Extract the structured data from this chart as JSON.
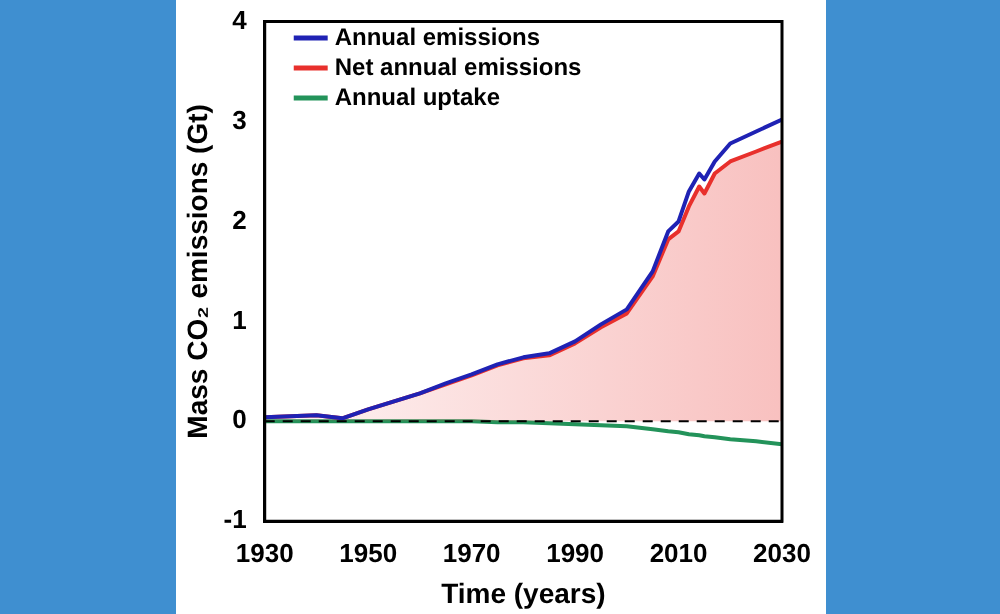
{
  "chart_data": {
    "type": "line",
    "xlabel": "Time (years)",
    "ylabel": "Mass CO₂ emissions (Gt)",
    "x": [
      1930,
      1935,
      1940,
      1945,
      1950,
      1955,
      1960,
      1965,
      1970,
      1975,
      1980,
      1985,
      1990,
      1995,
      2000,
      2005,
      2008,
      2010,
      2012,
      2014,
      2015,
      2017,
      2020,
      2025,
      2030
    ],
    "series": [
      {
        "name": "Annual emissions",
        "color": "#1f22b4",
        "values": [
          0.04,
          0.05,
          0.06,
          0.03,
          0.12,
          0.2,
          0.28,
          0.38,
          0.47,
          0.57,
          0.64,
          0.68,
          0.8,
          0.97,
          1.12,
          1.5,
          1.9,
          2.0,
          2.3,
          2.48,
          2.42,
          2.6,
          2.78,
          2.9,
          3.02
        ]
      },
      {
        "name": "Net annual emissions",
        "type": "area",
        "color": "#e8302c",
        "values": [
          0.04,
          0.05,
          0.06,
          0.03,
          0.12,
          0.2,
          0.28,
          0.37,
          0.46,
          0.56,
          0.63,
          0.66,
          0.78,
          0.94,
          1.08,
          1.45,
          1.82,
          1.9,
          2.15,
          2.35,
          2.28,
          2.48,
          2.6,
          2.7,
          2.8
        ]
      },
      {
        "name": "Annual uptake",
        "color": "#23935a",
        "values": [
          0,
          0,
          0,
          0,
          0,
          0,
          0,
          0,
          0,
          -0.01,
          -0.01,
          -0.02,
          -0.03,
          -0.04,
          -0.05,
          -0.08,
          -0.1,
          -0.11,
          -0.13,
          -0.14,
          -0.15,
          -0.16,
          -0.18,
          -0.2,
          -0.23
        ]
      }
    ],
    "xlim": [
      1930,
      2030
    ],
    "xticks": [
      1930,
      1950,
      1970,
      1990,
      2010,
      2030
    ],
    "ylim": [
      -1,
      4
    ],
    "yticks": [
      -1,
      0,
      1,
      2,
      3,
      4
    ],
    "ref_lines": [
      {
        "axis": "y",
        "value": 0,
        "color": "#000000",
        "line_style": "dashed"
      }
    ],
    "legend": "top left",
    "grid": false,
    "marker": "none",
    "line_style": "solid"
  }
}
